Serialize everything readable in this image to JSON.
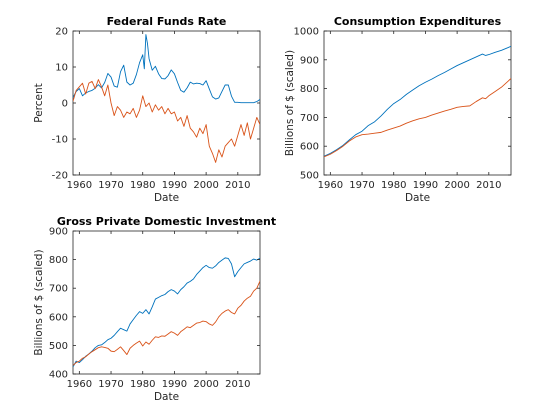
{
  "chart_data": [
    {
      "type": "line",
      "title": "Federal Funds Rate",
      "xlabel": "Date",
      "ylabel": "Percent",
      "xlim": [
        1958,
        2017
      ],
      "ylim": [
        -20,
        20
      ],
      "xticks": [
        "1960",
        "1970",
        "1980",
        "1990",
        "2000",
        "2010"
      ],
      "yticks": [
        "-20",
        "-10",
        "0",
        "10",
        "20"
      ],
      "colors": [
        "#0072BD",
        "#D95319"
      ],
      "series": [
        {
          "x": [
            1958,
            1959,
            1960,
            1961,
            1962,
            1963,
            1964,
            1965,
            1966,
            1967,
            1968,
            1969,
            1970,
            1971,
            1972,
            1973,
            1974,
            1975,
            1976,
            1977,
            1978,
            1979,
            1980,
            1980.5,
            1981,
            1981.5,
            1982,
            1983,
            1984,
            1985,
            1986,
            1987,
            1988,
            1989,
            1990,
            1991,
            1992,
            1993,
            1994,
            1995,
            1996,
            1997,
            1998,
            1999,
            2000,
            2001,
            2002,
            2003,
            2004,
            2005,
            2006,
            2007,
            2008,
            2009,
            2010,
            2011,
            2012,
            2013,
            2014,
            2015,
            2016,
            2017
          ],
          "y": [
            1.5,
            3.2,
            4.0,
            2.0,
            2.8,
            3.2,
            3.5,
            4.1,
            5.1,
            4.2,
            5.7,
            8.2,
            7.2,
            4.7,
            4.4,
            8.7,
            10.5,
            5.8,
            5.0,
            5.5,
            7.9,
            11.2,
            13.4,
            9.5,
            19.0,
            16.5,
            12.3,
            9.1,
            10.2,
            8.1,
            6.8,
            6.7,
            7.6,
            9.2,
            8.1,
            5.7,
            3.5,
            3.0,
            4.2,
            5.8,
            5.3,
            5.5,
            5.4,
            5.0,
            6.2,
            3.9,
            1.7,
            1.1,
            1.4,
            3.2,
            5.0,
            5.0,
            1.9,
            0.2,
            0.2,
            0.1,
            0.1,
            0.1,
            0.1,
            0.1,
            0.4,
            1.0
          ]
        },
        {
          "x": [
            1958,
            1959,
            1960,
            1961,
            1962,
            1963,
            1964,
            1965,
            1966,
            1967,
            1968,
            1969,
            1970,
            1971,
            1972,
            1973,
            1974,
            1975,
            1976,
            1977,
            1978,
            1979,
            1980,
            1981,
            1982,
            1983,
            1984,
            1985,
            1986,
            1987,
            1988,
            1989,
            1990,
            1991,
            1992,
            1993,
            1994,
            1995,
            1996,
            1997,
            1998,
            1999,
            2000,
            2001,
            2002,
            2003,
            2004,
            2005,
            2006,
            2007,
            2008,
            2009,
            2010,
            2011,
            2012,
            2013,
            2014,
            2015,
            2016,
            2017
          ],
          "y": [
            0.5,
            3.5,
            4.5,
            5.5,
            2.5,
            5.5,
            6.0,
            4.0,
            6.5,
            4.5,
            2.0,
            5.0,
            0.0,
            -3.5,
            -1.0,
            -2.0,
            -4.0,
            -2.5,
            -3.0,
            -1.5,
            -4.0,
            -2.0,
            2.0,
            -1.0,
            0.0,
            -2.5,
            -0.5,
            -2.0,
            -1.0,
            -3.0,
            -1.5,
            -3.0,
            -2.5,
            -5.0,
            -4.0,
            -6.5,
            -3.5,
            -7.0,
            -8.0,
            -9.5,
            -7.0,
            -8.5,
            -6.0,
            -12.0,
            -14.0,
            -16.5,
            -13.0,
            -15.0,
            -12.0,
            -11.0,
            -10.0,
            -12.0,
            -9.0,
            -6.0,
            -9.0,
            -5.5,
            -10.0,
            -7.0,
            -4.0,
            -6.0
          ]
        }
      ]
    },
    {
      "type": "line",
      "title": "Consumption Expenditures",
      "xlabel": "Date",
      "ylabel": "Billions of $ (scaled)",
      "xlim": [
        1958,
        2017
      ],
      "ylim": [
        500,
        1000
      ],
      "xticks": [
        "1960",
        "1970",
        "1980",
        "1990",
        "2000",
        "2010"
      ],
      "yticks": [
        "500",
        "600",
        "700",
        "800",
        "900",
        "1000"
      ],
      "colors": [
        "#0072BD",
        "#D95319"
      ],
      "series": [
        {
          "x": [
            1958,
            1960,
            1962,
            1964,
            1966,
            1968,
            1970,
            1972,
            1974,
            1976,
            1978,
            1980,
            1982,
            1984,
            1986,
            1988,
            1990,
            1992,
            1994,
            1996,
            1998,
            2000,
            2002,
            2004,
            2006,
            2008,
            2009,
            2010,
            2012,
            2014,
            2016,
            2017
          ],
          "y": [
            565,
            575,
            588,
            603,
            622,
            640,
            652,
            672,
            685,
            705,
            728,
            748,
            762,
            780,
            795,
            810,
            822,
            833,
            845,
            856,
            868,
            880,
            890,
            900,
            910,
            920,
            915,
            918,
            926,
            933,
            942,
            947
          ]
        },
        {
          "x": [
            1958,
            1960,
            1962,
            1964,
            1966,
            1968,
            1970,
            1972,
            1974,
            1976,
            1978,
            1980,
            1982,
            1984,
            1986,
            1988,
            1990,
            1992,
            1994,
            1996,
            1998,
            2000,
            2002,
            2004,
            2006,
            2008,
            2009,
            2010,
            2012,
            2014,
            2016,
            2017
          ],
          "y": [
            563,
            572,
            585,
            600,
            618,
            632,
            640,
            642,
            645,
            648,
            656,
            663,
            670,
            680,
            688,
            695,
            700,
            708,
            715,
            722,
            728,
            735,
            738,
            740,
            755,
            768,
            765,
            775,
            790,
            805,
            825,
            835
          ]
        }
      ]
    },
    {
      "type": "line",
      "title": "Gross Private Domestic Investment",
      "xlabel": "Date",
      "ylabel": "Billions of $ (scaled)",
      "xlim": [
        1958,
        2017
      ],
      "ylim": [
        400,
        900
      ],
      "xticks": [
        "1960",
        "1970",
        "1980",
        "1990",
        "2000",
        "2010"
      ],
      "yticks": [
        "400",
        "500",
        "600",
        "700",
        "800",
        "900"
      ],
      "colors": [
        "#0072BD",
        "#D95319"
      ],
      "series": [
        {
          "x": [
            1958,
            1959,
            1960,
            1961,
            1962,
            1963,
            1964,
            1965,
            1966,
            1967,
            1968,
            1969,
            1970,
            1971,
            1972,
            1973,
            1974,
            1975,
            1976,
            1977,
            1978,
            1979,
            1980,
            1981,
            1982,
            1983,
            1984,
            1985,
            1986,
            1987,
            1988,
            1989,
            1990,
            1991,
            1992,
            1993,
            1994,
            1995,
            1996,
            1997,
            1998,
            1999,
            2000,
            2001,
            2002,
            2003,
            2004,
            2005,
            2006,
            2007,
            2008,
            2009,
            2010,
            2011,
            2012,
            2013,
            2014,
            2015,
            2016,
            2017
          ],
          "y": [
            425,
            445,
            440,
            450,
            462,
            470,
            480,
            492,
            500,
            502,
            510,
            520,
            525,
            535,
            548,
            560,
            555,
            550,
            575,
            590,
            605,
            618,
            612,
            625,
            610,
            635,
            662,
            668,
            674,
            678,
            688,
            695,
            690,
            680,
            695,
            705,
            718,
            724,
            732,
            748,
            760,
            772,
            780,
            772,
            770,
            778,
            790,
            798,
            806,
            804,
            785,
            740,
            758,
            772,
            785,
            790,
            795,
            802,
            798,
            805
          ]
        },
        {
          "x": [
            1958,
            1959,
            1960,
            1961,
            1962,
            1963,
            1964,
            1965,
            1966,
            1967,
            1968,
            1969,
            1970,
            1971,
            1972,
            1973,
            1974,
            1975,
            1976,
            1977,
            1978,
            1979,
            1980,
            1981,
            1982,
            1983,
            1984,
            1985,
            1986,
            1987,
            1988,
            1989,
            1990,
            1991,
            1992,
            1993,
            1994,
            1995,
            1996,
            1997,
            1998,
            1999,
            2000,
            2001,
            2002,
            2003,
            2004,
            2005,
            2006,
            2007,
            2008,
            2009,
            2010,
            2011,
            2012,
            2013,
            2014,
            2015,
            2016,
            2017
          ],
          "y": [
            430,
            440,
            445,
            455,
            460,
            470,
            478,
            485,
            492,
            495,
            493,
            490,
            480,
            478,
            486,
            495,
            482,
            468,
            490,
            500,
            508,
            515,
            498,
            512,
            504,
            518,
            530,
            528,
            533,
            532,
            540,
            548,
            543,
            535,
            548,
            556,
            565,
            562,
            570,
            578,
            580,
            585,
            583,
            575,
            570,
            582,
            600,
            612,
            620,
            625,
            615,
            610,
            630,
            640,
            655,
            665,
            672,
            690,
            700,
            725
          ]
        }
      ]
    }
  ]
}
